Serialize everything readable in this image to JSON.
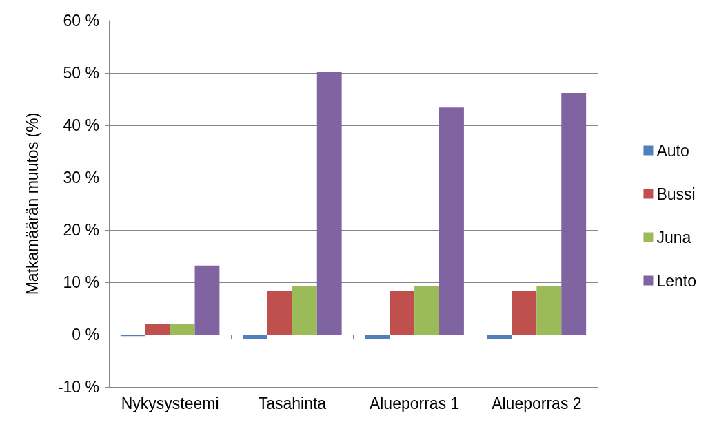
{
  "chart_data": {
    "type": "bar",
    "ylabel": "Matkamäärän muutos (%)",
    "categories": [
      "Nykysysteemi",
      "Tasahinta",
      "Alueporras 1",
      "Alueporras 2"
    ],
    "series": [
      {
        "name": "Auto",
        "color": "#4f81bd",
        "values": [
          -0.3,
          -0.8,
          -0.8,
          -0.8
        ]
      },
      {
        "name": "Bussi",
        "color": "#c0504d",
        "values": [
          2.1,
          8.4,
          8.4,
          8.4
        ]
      },
      {
        "name": "Juna",
        "color": "#9bbb59",
        "values": [
          2.1,
          9.2,
          9.2,
          9.2
        ]
      },
      {
        "name": "Lento",
        "color": "#8064a2",
        "values": [
          13.2,
          50.2,
          43.4,
          46.2
        ]
      }
    ],
    "ylim": [
      -10,
      60
    ],
    "yticks": [
      {
        "value": -10,
        "label": "-10 %"
      },
      {
        "value": 0,
        "label": "0 %"
      },
      {
        "value": 10,
        "label": "10 %"
      },
      {
        "value": 20,
        "label": "20 %"
      },
      {
        "value": 30,
        "label": "30 %"
      },
      {
        "value": 40,
        "label": "40 %"
      },
      {
        "value": 50,
        "label": "50 %"
      },
      {
        "value": 60,
        "label": "60 %"
      }
    ],
    "grid": "y",
    "legend": "right"
  }
}
